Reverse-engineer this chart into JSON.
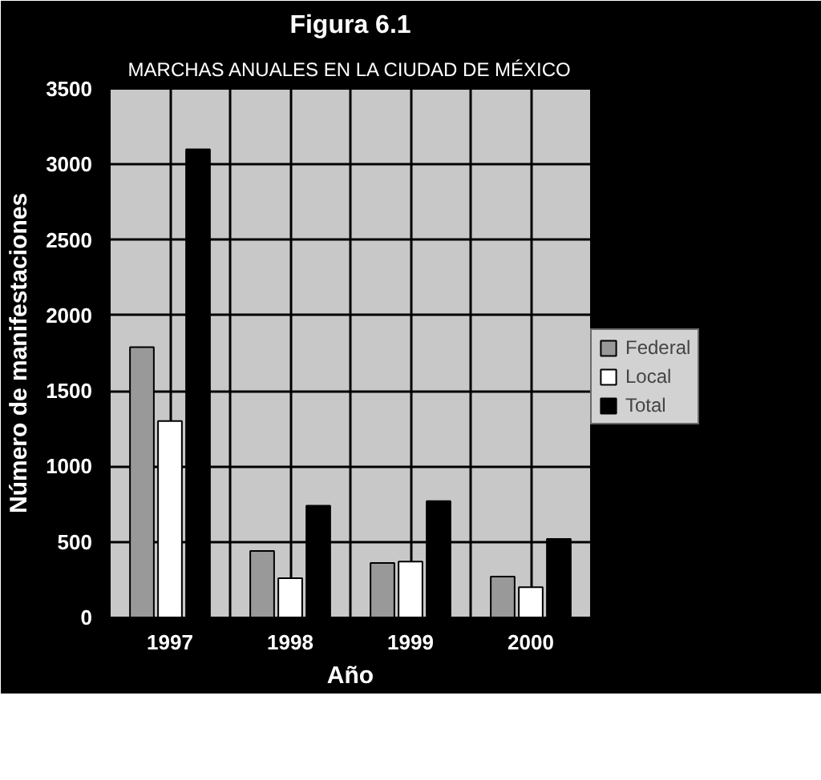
{
  "chart_data": {
    "type": "bar",
    "title": "Figura 6.1",
    "subtitle": "MARCHAS ANUALES EN LA CIUDAD DE MÉXICO",
    "xlabel": "Año",
    "ylabel": "Número de manifestaciones",
    "categories": [
      "1997",
      "1998",
      "1999",
      "2000"
    ],
    "series": [
      {
        "name": "Federal",
        "color": "#999999",
        "values": [
          1790,
          440,
          360,
          270
        ]
      },
      {
        "name": "Local",
        "color": "#ffffff",
        "values": [
          1300,
          260,
          370,
          200
        ]
      },
      {
        "name": "Total",
        "color": "#000000",
        "values": [
          3100,
          740,
          770,
          520
        ]
      }
    ],
    "ylim": [
      0,
      3500
    ],
    "yticks": [
      0,
      500,
      1000,
      1500,
      2000,
      2500,
      3000,
      3500
    ],
    "grid": true,
    "legend": "right"
  }
}
